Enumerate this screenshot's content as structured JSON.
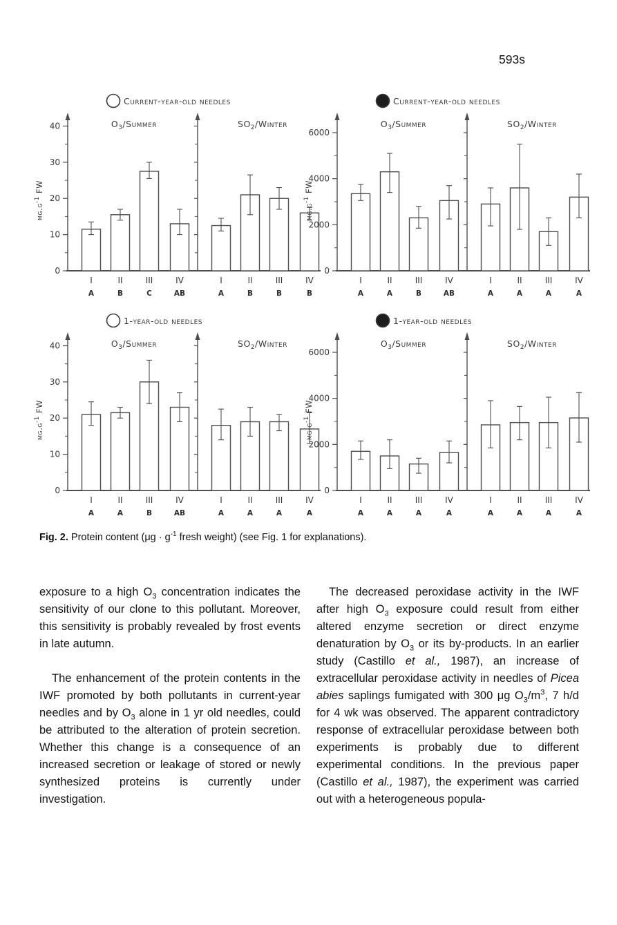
{
  "page_number": "593s",
  "caption": [
    {
      "t": "Fig. 2.",
      "b": true
    },
    {
      "t": " Protein content (μg · g"
    },
    {
      "t": "-1",
      "sup": true
    },
    {
      "t": " fresh weight) (see Fig. 1 for explanations)."
    }
  ],
  "chart_data": [
    {
      "type": "bar",
      "legend_marker": "open-circle",
      "legend_label": "Current-year-old needles",
      "ylabel": {
        "prefix": "μg.g",
        "sup": "-1",
        "suffix": " FW"
      },
      "ylim": [
        0,
        42
      ],
      "yticks": [
        0,
        10,
        20,
        30,
        40
      ],
      "yticks_minor": [
        5,
        15,
        25,
        35
      ],
      "panels": [
        {
          "label": {
            "pre": "O",
            "sub": "3",
            "post": "/Summer"
          },
          "categories": [
            "I",
            "II",
            "III",
            "IV"
          ],
          "letters": [
            "A",
            "B",
            "C",
            "AB"
          ],
          "values": [
            11.5,
            15.5,
            27.5,
            13
          ],
          "err": [
            [
              10,
              13.5
            ],
            [
              14,
              17
            ],
            [
              25.5,
              30
            ],
            [
              10,
              17
            ]
          ]
        },
        {
          "label": {
            "pre": "SO",
            "sub": "2",
            "post": "/Winter"
          },
          "categories": [
            "I",
            "II",
            "III",
            "IV"
          ],
          "letters": [
            "A",
            "B",
            "B",
            "B"
          ],
          "values": [
            12.5,
            21,
            20,
            16
          ],
          "err": [
            [
              11,
              14.5
            ],
            [
              15.5,
              26.5
            ],
            [
              17,
              23
            ],
            [
              14,
              17.5
            ]
          ]
        }
      ]
    },
    {
      "type": "bar",
      "legend_marker": "filled-circle",
      "legend_label": "Current-year-old needles",
      "ylabel": {
        "prefix": "μg.g",
        "sup": "-1",
        "suffix": " FW"
      },
      "ylim": [
        0,
        6600
      ],
      "yticks": [
        0,
        2000,
        4000,
        6000
      ],
      "yticks_minor": [
        1000,
        3000,
        5000
      ],
      "panels": [
        {
          "label": {
            "pre": "O",
            "sub": "3",
            "post": "/Summer"
          },
          "categories": [
            "I",
            "II",
            "III",
            "IV"
          ],
          "letters": [
            "A",
            "A",
            "B",
            "AB"
          ],
          "values": [
            3350,
            4300,
            2300,
            3050
          ],
          "err": [
            [
              3050,
              3750
            ],
            [
              3400,
              5100
            ],
            [
              1850,
              2800
            ],
            [
              2250,
              3700
            ]
          ]
        },
        {
          "label": {
            "pre": "SO",
            "sub": "2",
            "post": "/Winter"
          },
          "categories": [
            "I",
            "II",
            "III",
            "IV"
          ],
          "letters": [
            "A",
            "A",
            "A",
            "A"
          ],
          "values": [
            2900,
            3600,
            1700,
            3200
          ],
          "err": [
            [
              1950,
              3600
            ],
            [
              1800,
              5500
            ],
            [
              1100,
              2300
            ],
            [
              2300,
              4200
            ]
          ]
        }
      ]
    },
    {
      "type": "bar",
      "legend_marker": "open-circle",
      "legend_label": "1-year-old needles",
      "ylabel": {
        "prefix": "μg.g",
        "sup": "-1",
        "suffix": " FW"
      },
      "ylim": [
        0,
        42
      ],
      "yticks": [
        0,
        10,
        20,
        30,
        40
      ],
      "yticks_minor": [
        5,
        15,
        25,
        35
      ],
      "panels": [
        {
          "label": {
            "pre": "O",
            "sub": "3",
            "post": "/Summer"
          },
          "categories": [
            "I",
            "II",
            "III",
            "IV"
          ],
          "letters": [
            "A",
            "A",
            "B",
            "AB"
          ],
          "values": [
            21,
            21.5,
            30,
            23
          ],
          "err": [
            [
              18,
              24.5
            ],
            [
              20,
              23
            ],
            [
              24,
              36
            ],
            [
              19,
              27
            ]
          ]
        },
        {
          "label": {
            "pre": "SO",
            "sub": "2",
            "post": "/Winter"
          },
          "categories": [
            "I",
            "II",
            "III",
            "IV"
          ],
          "letters": [
            "A",
            "A",
            "A",
            "A"
          ],
          "values": [
            18,
            19,
            19,
            17
          ],
          "err": [
            [
              14,
              22.5
            ],
            [
              15,
              23
            ],
            [
              16.5,
              21
            ],
            [
              13,
              21.5
            ]
          ]
        }
      ]
    },
    {
      "type": "bar",
      "legend_marker": "filled-circle",
      "legend_label": "1-year-old needles",
      "ylabel": {
        "prefix": "μg.g",
        "sup": "-1",
        "suffix": " FW"
      },
      "ylim": [
        0,
        6600
      ],
      "yticks": [
        0,
        2000,
        4000,
        6000
      ],
      "yticks_minor": [
        1000,
        3000,
        5000
      ],
      "panels": [
        {
          "label": {
            "pre": "O",
            "sub": "3",
            "post": "/Summer"
          },
          "categories": [
            "I",
            "II",
            "III",
            "IV"
          ],
          "letters": [
            "A",
            "A",
            "A",
            "A"
          ],
          "values": [
            1700,
            1500,
            1150,
            1650
          ],
          "err": [
            [
              1350,
              2150
            ],
            [
              950,
              2200
            ],
            [
              750,
              1400
            ],
            [
              1200,
              2150
            ]
          ]
        },
        {
          "label": {
            "pre": "SO",
            "sub": "2",
            "post": "/Winter"
          },
          "categories": [
            "I",
            "II",
            "III",
            "IV"
          ],
          "letters": [
            "A",
            "A",
            "A",
            "A"
          ],
          "values": [
            2850,
            2950,
            2950,
            3150
          ],
          "err": [
            [
              1850,
              3900
            ],
            [
              2200,
              3650
            ],
            [
              1850,
              4050
            ],
            [
              2100,
              4250
            ]
          ]
        }
      ]
    }
  ],
  "article": {
    "columns": [
      {
        "paragraphs": [
          {
            "indent": false,
            "segments": [
              {
                "t": "exposure to a high O"
              },
              {
                "t": "3",
                "sub": true
              },
              {
                "t": " concentration indicates the sensitivity of our clone to this pollutant. Moreover, this sensitivity is probably revealed by frost events in late autumn."
              }
            ]
          },
          {
            "indent": true,
            "segments": [
              {
                "t": "The enhancement of the protein contents in the IWF promoted by both pollutants in current-year needles and by O"
              },
              {
                "t": "3",
                "sub": true
              },
              {
                "t": " alone in 1 yr old needles, could be attributed to the alteration of protein secretion. Whether this change is a consequence of an increased secretion or leakage of stored or newly synthesized proteins is currently under investigation."
              }
            ]
          }
        ]
      },
      {
        "paragraphs": [
          {
            "indent": true,
            "segments": [
              {
                "t": "The decreased peroxidase activity in the IWF after high O"
              },
              {
                "t": "3",
                "sub": true
              },
              {
                "t": " exposure could result from either altered enzyme secretion or direct enzyme denaturation by O"
              },
              {
                "t": "3",
                "sub": true
              },
              {
                "t": " or its by-products. In an earlier study (Castillo "
              },
              {
                "t": "et al.,",
                "i": true
              },
              {
                "t": " 1987), an increase of extracellular peroxidase activity in needles of "
              },
              {
                "t": "Picea abies",
                "i": true
              },
              {
                "t": " saplings fumigated with 300 μg O"
              },
              {
                "t": "3",
                "sub": true
              },
              {
                "t": "/m"
              },
              {
                "t": "3",
                "sup": true
              },
              {
                "t": ", 7 h/d for 4 wk was observed. The apparent contradictory response of extracellular peroxidase between both experiments is probably due to different experimental conditions. In the previous paper (Castillo "
              },
              {
                "t": "et al.,",
                "i": true
              },
              {
                "t": " 1987), the experiment was carried out with a heterogeneous popula-"
              }
            ]
          }
        ]
      }
    ]
  }
}
